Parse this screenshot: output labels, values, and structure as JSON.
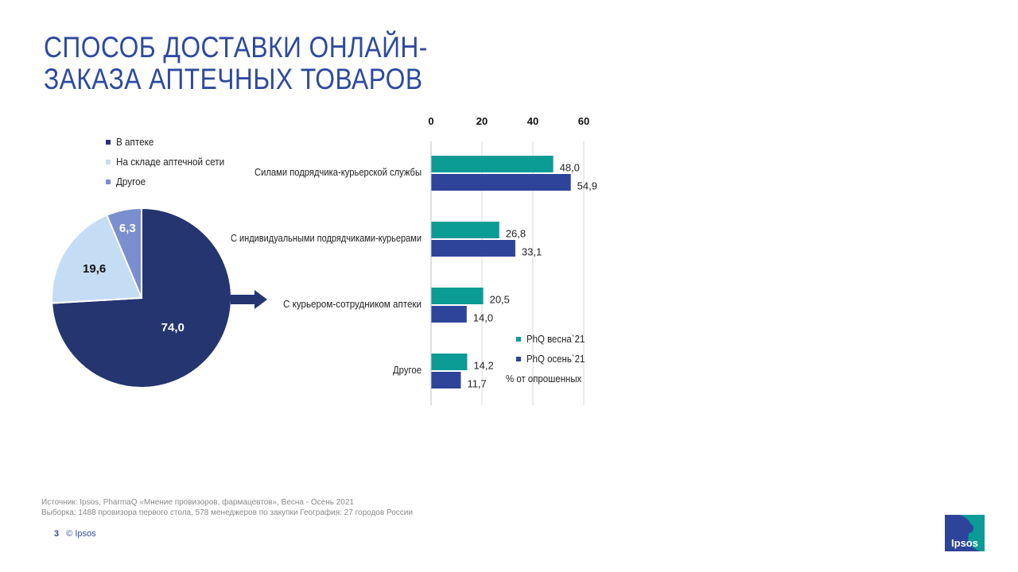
{
  "title": {
    "line1": "СПОСОБ ДОСТАВКИ ОНЛАЙН-",
    "line2": "ЗАКАЗА АПТЕЧНЫХ ТОВАРОВ"
  },
  "colors": {
    "title": "#2e4a9c",
    "navy": "#243570",
    "light_blue": "#c5dcf5",
    "periwinkle": "#7a8ed0",
    "teal": "#0a9c95",
    "dark_blue": "#2e449a"
  },
  "chart_data": [
    {
      "type": "pie",
      "categories": [
        "В аптеке",
        "На складе аптечной сети",
        "Другое"
      ],
      "values": [
        74.0,
        19.6,
        6.3
      ],
      "labels": [
        "74,0",
        "19,6",
        "6,3"
      ],
      "colors": [
        "#243570",
        "#c5dcf5",
        "#7a8ed0"
      ],
      "label_colors": [
        "#ffffff",
        "#111111",
        "#ffffff"
      ],
      "legend": "top",
      "title": ""
    },
    {
      "type": "bar",
      "orientation": "horizontal",
      "categories": [
        "Силами подрядчика-курьерской службы",
        "С индивидуальными подрядчиками-курьерами",
        "С курьером-сотрудником аптеки",
        "Другое"
      ],
      "series": [
        {
          "name": "PhQ весна`21",
          "values": [
            48.0,
            26.8,
            20.5,
            14.2
          ],
          "labels": [
            "48,0",
            "26,8",
            "20,5",
            "14,2"
          ],
          "color": "#0a9c95"
        },
        {
          "name": "PhQ осень`21",
          "values": [
            54.9,
            33.1,
            14.0,
            11.7
          ],
          "labels": [
            "54,9",
            "33,1",
            "14,0",
            "11,7"
          ],
          "color": "#2e449a"
        }
      ],
      "xticks": [
        "0",
        "20",
        "40",
        "60"
      ],
      "xlim": [
        0,
        60
      ],
      "grid": true,
      "legend": "bottom-right",
      "note": "% от опрошенных",
      "title": ""
    }
  ],
  "source": {
    "line1": "Источник: Ipsos, PharmaQ «Мнение провизоров, фармацевтов», Весна - Осень 2021",
    "line2": "Выборка: 1488 провизора первого стола, 578 менеджеров по закупки География: 27 городов России"
  },
  "footer": {
    "page": "3",
    "copyright": "© Ipsos"
  },
  "logo": {
    "text": "Ipsos"
  }
}
